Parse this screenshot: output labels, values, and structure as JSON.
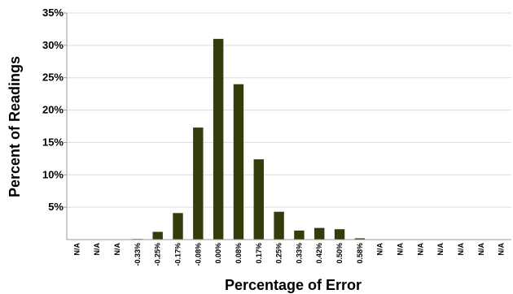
{
  "chart_data": {
    "type": "bar",
    "xlabel": "Percentage of Error",
    "ylabel": "Percent of Readings",
    "ylim": [
      0,
      35
    ],
    "yticks": [
      5,
      10,
      15,
      20,
      25,
      30,
      35
    ],
    "ytick_labels": [
      "5%",
      "10%",
      "15%",
      "20%",
      "25%",
      "30%",
      "35%"
    ],
    "grid": "horizontal",
    "bar_color": "#333d0c",
    "categories": [
      "N/A",
      "N/A",
      "N/A",
      "-0.33%",
      "-0.25%",
      "-0.17%",
      "-0.08%",
      "0.00%",
      "0.08%",
      "0.17%",
      "0.25%",
      "0.33%",
      "0.42%",
      "0.50%",
      "0.58%",
      "N/A",
      "N/A",
      "N/A",
      "N/A",
      "N/A",
      "N/A",
      "N/A"
    ],
    "values": [
      0,
      0,
      0,
      0.1,
      1.2,
      4.1,
      17.3,
      31.0,
      24.0,
      12.4,
      4.3,
      1.4,
      1.8,
      1.6,
      0.2,
      0,
      0,
      0,
      0,
      0,
      0,
      0
    ]
  }
}
